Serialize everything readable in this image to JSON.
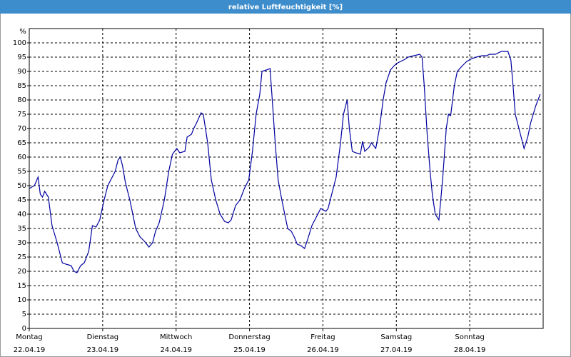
{
  "chart_data": {
    "type": "line",
    "title": "relative Luftfeuchtigkeit [%]",
    "y_label": "%",
    "xlim": [
      0,
      7
    ],
    "ylim": [
      0,
      105
    ],
    "yticks": [
      0,
      5,
      10,
      15,
      20,
      25,
      30,
      35,
      40,
      45,
      50,
      55,
      60,
      65,
      70,
      75,
      80,
      85,
      90,
      95,
      100
    ],
    "xticks": [
      {
        "value": 0,
        "label": "Montag"
      },
      {
        "value": 1,
        "label": "Dienstag"
      },
      {
        "value": 2,
        "label": "Mittwoch"
      },
      {
        "value": 3,
        "label": "Donnerstag"
      },
      {
        "value": 4,
        "label": "Freitag"
      },
      {
        "value": 5,
        "label": "Samstag"
      },
      {
        "value": 6,
        "label": "Sonntag"
      }
    ],
    "xtick_dates": [
      "22.04.19",
      "23.04.19",
      "24.04.19",
      "25.04.19",
      "26.04.19",
      "27.04.19",
      "28.04.19"
    ],
    "grid": true,
    "color": "#0000a0",
    "x": [
      0,
      0.07,
      0.12,
      0.15,
      0.18,
      0.21,
      0.26,
      0.31,
      0.38,
      0.45,
      0.5,
      0.57,
      0.61,
      0.65,
      0.7,
      0.75,
      0.81,
      0.86,
      0.91,
      0.96,
      1.02,
      1.07,
      1.13,
      1.17,
      1.21,
      1.24,
      1.27,
      1.31,
      1.37,
      1.41,
      1.45,
      1.51,
      1.57,
      1.63,
      1.68,
      1.72,
      1.77,
      1.84,
      1.9,
      1.95,
      2.01,
      2.05,
      2.12,
      2.15,
      2.21,
      2.24,
      2.28,
      2.34,
      2.37,
      2.43,
      2.48,
      2.54,
      2.6,
      2.66,
      2.71,
      2.75,
      2.81,
      2.87,
      2.93,
      2.99,
      3.04,
      3.09,
      3.14,
      3.17,
      3.23,
      3.28,
      3.31,
      3.35,
      3.39,
      3.44,
      3.48,
      3.52,
      3.57,
      3.61,
      3.65,
      3.7,
      3.75,
      3.79,
      3.85,
      3.91,
      3.97,
      4.04,
      4.07,
      4.12,
      4.18,
      4.24,
      4.28,
      4.33,
      4.36,
      4.4,
      4.45,
      4.51,
      4.54,
      4.57,
      4.63,
      4.66,
      4.72,
      4.77,
      4.82,
      4.86,
      4.92,
      4.97,
      5.02,
      5.1,
      5.16,
      5.24,
      5.32,
      5.35,
      5.38,
      5.42,
      5.46,
      5.49,
      5.53,
      5.58,
      5.63,
      5.68,
      5.71,
      5.74,
      5.79,
      5.83,
      5.9,
      5.96,
      6.03,
      6.09,
      6.17,
      6.23,
      6.27,
      6.35,
      6.43,
      6.52,
      6.56,
      6.59,
      6.62,
      6.67,
      6.71,
      6.74,
      6.79,
      6.83,
      6.9,
      6.96
    ],
    "values": [
      49,
      50,
      53,
      47,
      46,
      48,
      46,
      36,
      30,
      23,
      22.5,
      22,
      20,
      19.5,
      22,
      23,
      27,
      36,
      35.5,
      38,
      45,
      50,
      53,
      55,
      59,
      60,
      57,
      51,
      45,
      40,
      35,
      32,
      30.5,
      28.5,
      30,
      34,
      37,
      45,
      55,
      61,
      63,
      61.5,
      62,
      67,
      68,
      70,
      72,
      75.5,
      75,
      65,
      52,
      45,
      40,
      37.5,
      37,
      38,
      43,
      45,
      49,
      52,
      62,
      75,
      82,
      90,
      90.5,
      91,
      80,
      65,
      52,
      45,
      40,
      35,
      34,
      32,
      29.5,
      29,
      28,
      31,
      36,
      39,
      42,
      41,
      42,
      47,
      53,
      65,
      75,
      80,
      70,
      62,
      61.5,
      61,
      65.5,
      62,
      63.5,
      65,
      63,
      70,
      80,
      86,
      90.5,
      92,
      93,
      94,
      95,
      95.5,
      96,
      95,
      85,
      68,
      55,
      47,
      40,
      38,
      52,
      70,
      75,
      74.5,
      85,
      90,
      92,
      93.5,
      94.5,
      95,
      95.5,
      95.5,
      96,
      96,
      97,
      97,
      94,
      85,
      75,
      70,
      66,
      63,
      67,
      72,
      78,
      82
    ]
  }
}
